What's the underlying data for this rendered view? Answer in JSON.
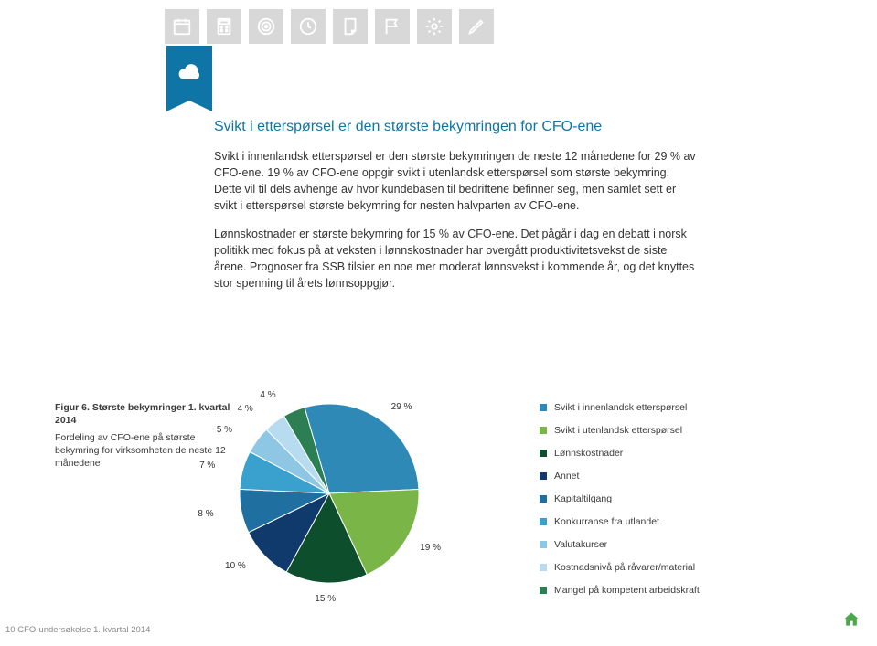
{
  "heading": "Svikt i etterspørsel er den største bekymringen for CFO-ene",
  "para1": "Svikt i innenlandsk etterspørsel er den største bekymringen de neste 12 månedene for 29 % av CFO-ene. 19 % av CFO-ene oppgir svikt i utenlandsk etterspørsel som største bekymring. Dette vil til dels avhenge av hvor kundebasen til bedriftene befinner seg, men samlet sett er svikt i etterspørsel største bekymring for nesten halvparten av CFO-ene.",
  "para2": "Lønnskostnader er største bekymring for 15 % av CFO-ene. Det pågår i dag en debatt i norsk politikk med fokus på at veksten i lønnskostnader har overgått produktivitetsvekst de siste årene. Prognoser fra SSB tilsier en noe mer moderat lønnsvekst i kommende år, og det knyttes stor spenning til årets lønnsoppgjør.",
  "figure_title": "Figur 6. Største bekymringer 1. kvartal 2014",
  "figure_desc": "Fordeling av CFO-ene på største bekymring for virksomheten de neste 12 månedene",
  "pie": {
    "size": 200,
    "start_angle_deg": -106,
    "slices": [
      {
        "label": "Svikt i innenlandsk etterspørsel",
        "percent": 29,
        "color": "#2f89b6",
        "label_text": "29 %"
      },
      {
        "label": "Svikt i utenlandsk etterspørsel",
        "percent": 19,
        "color": "#7ab547",
        "label_text": "19 %"
      },
      {
        "label": "Lønnskostnader",
        "percent": 15,
        "color": "#0d4e2d",
        "label_text": "15 %"
      },
      {
        "label": "Annet",
        "percent": 10,
        "color": "#0f3a6b",
        "label_text": "10 %"
      },
      {
        "label": "Kapitaltilgang",
        "percent": 8,
        "color": "#1f6fa0",
        "label_text": "8 %"
      },
      {
        "label": "Konkurranse fra utlandet",
        "percent": 7,
        "color": "#3aa0cd",
        "label_text": "7 %"
      },
      {
        "label": "Valutakurser",
        "percent": 5,
        "color": "#8ec7e3",
        "label_text": "5 %"
      },
      {
        "label": "Kostnadsnivå på råvarer/material",
        "percent": 4,
        "color": "#b7dcef",
        "label_text": "4 %"
      },
      {
        "label": "Mangel på kompetent arbeidskraft",
        "percent": 4,
        "color": "#2b7f52",
        "label_text": "4 %"
      }
    ]
  },
  "footer": "10 CFO-undersøkelse 1. kvartal 2014",
  "topicons": [
    "calendar",
    "calculator",
    "target",
    "clock",
    "note",
    "flag",
    "gear",
    "pen"
  ]
}
